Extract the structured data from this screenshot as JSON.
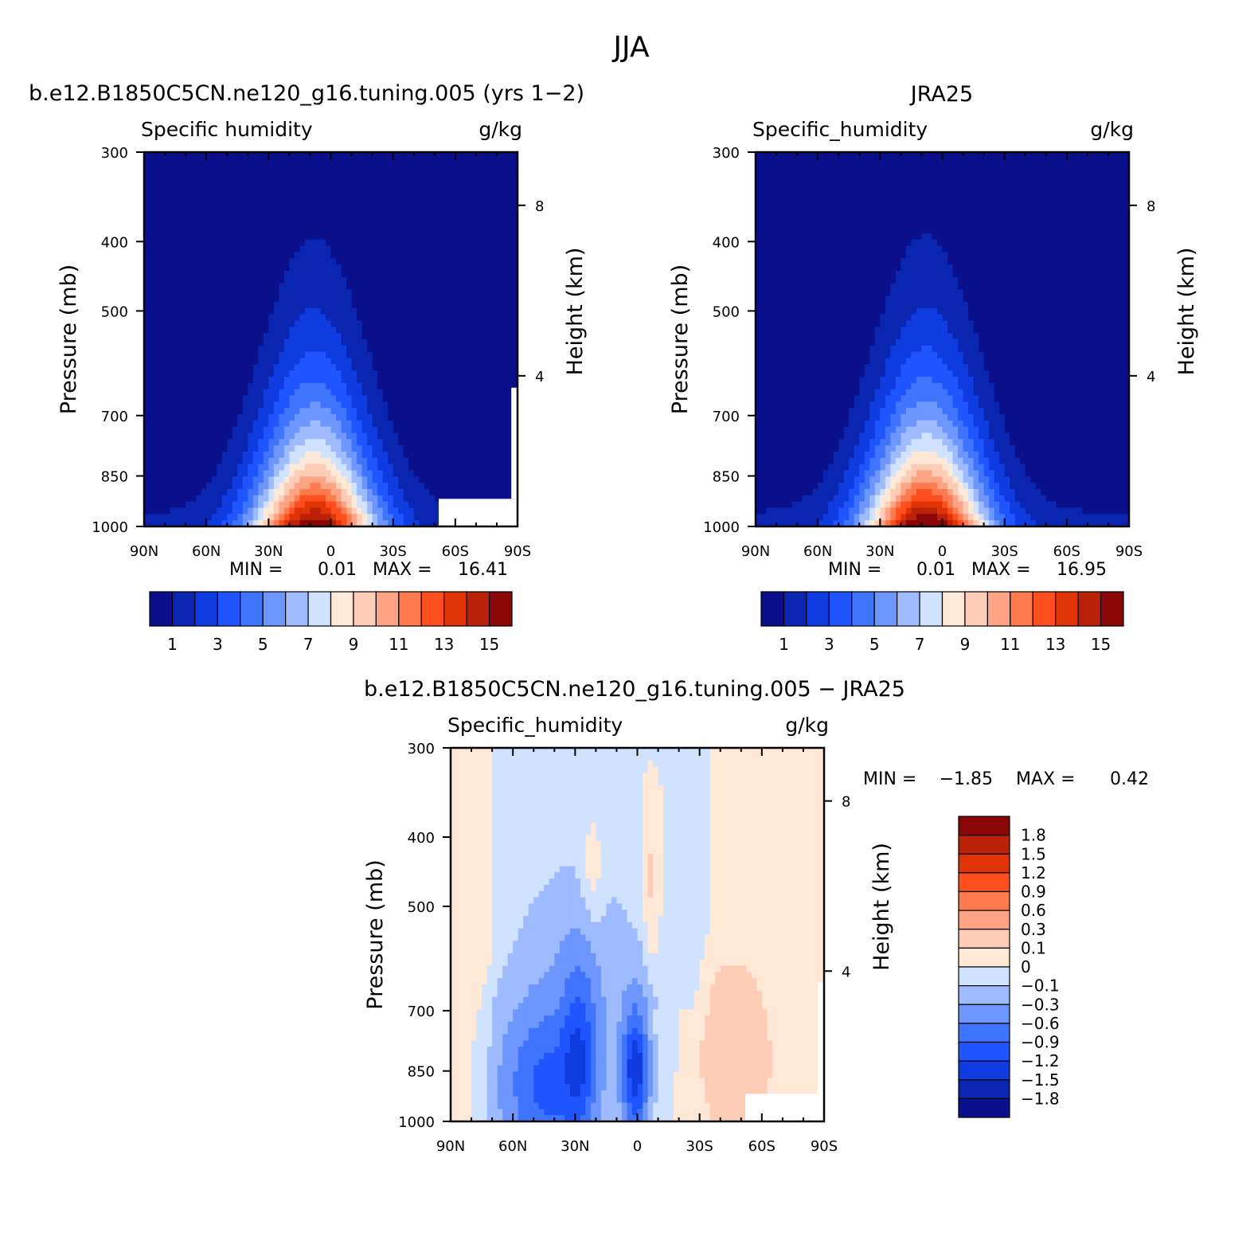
{
  "figure": {
    "title": "JJA"
  },
  "chart_data": [
    {
      "type": "heatmap",
      "title": "b.e12.B1850C5CN.ne120_g16.tuning.005 (yrs 1−2)",
      "variable": "Specific humidity",
      "units": "g/kg",
      "xlabel": "",
      "ylabel": "Pressure (mb)",
      "y2label": "Height (km)",
      "y_scale": "log",
      "xlim": [
        90,
        -90
      ],
      "ylim": [
        1000,
        300
      ],
      "x_ticks": [
        "90N",
        "60N",
        "30N",
        "0",
        "30S",
        "60S",
        "90S"
      ],
      "y_ticks": [
        "300",
        "400",
        "500",
        "700",
        "850",
        "1000"
      ],
      "y2_ticks": [
        "4",
        "8"
      ],
      "min_label": "MIN =",
      "min_value": "0.01",
      "max_label": "MAX =",
      "max_value": "16.41",
      "colorbar": {
        "orientation": "horizontal",
        "levels": [
          1,
          2,
          3,
          4,
          5,
          6,
          7,
          8,
          9,
          10,
          11,
          12,
          13,
          14,
          15
        ],
        "labels": [
          "1",
          "3",
          "5",
          "7",
          "9",
          "11",
          "13",
          "15"
        ],
        "colors": [
          "#0a0f8c",
          "#0a26b0",
          "#0f3ce0",
          "#1e55ff",
          "#3f74ff",
          "#6d97ff",
          "#9fbbff",
          "#cfe2ff",
          "#ffe8d6",
          "#ffcdb5",
          "#fea384",
          "#ff7a4e",
          "#ff4f1f",
          "#e03306",
          "#ba2208",
          "#8a0606"
        ]
      },
      "grid": false,
      "missing_region": "surface below ~920 mb, 50S–90S"
    },
    {
      "type": "heatmap",
      "title": "JRA25",
      "variable": "Specific_humidity",
      "units": "g/kg",
      "xlabel": "",
      "ylabel": "Pressure (mb)",
      "y2label": "Height (km)",
      "y_scale": "log",
      "xlim": [
        90,
        -90
      ],
      "ylim": [
        1000,
        300
      ],
      "x_ticks": [
        "90N",
        "60N",
        "30N",
        "0",
        "30S",
        "60S",
        "90S"
      ],
      "y_ticks": [
        "300",
        "400",
        "500",
        "700",
        "850",
        "1000"
      ],
      "y2_ticks": [
        "4",
        "8"
      ],
      "min_label": "MIN =",
      "min_value": "0.01",
      "max_label": "MAX =",
      "max_value": "16.95",
      "colorbar": {
        "orientation": "horizontal",
        "levels": [
          1,
          2,
          3,
          4,
          5,
          6,
          7,
          8,
          9,
          10,
          11,
          12,
          13,
          14,
          15
        ],
        "labels": [
          "1",
          "3",
          "5",
          "7",
          "9",
          "11",
          "13",
          "15"
        ],
        "colors": [
          "#0a0f8c",
          "#0a26b0",
          "#0f3ce0",
          "#1e55ff",
          "#3f74ff",
          "#6d97ff",
          "#9fbbff",
          "#cfe2ff",
          "#ffe8d6",
          "#ffcdb5",
          "#fea384",
          "#ff7a4e",
          "#ff4f1f",
          "#e03306",
          "#ba2208",
          "#8a0606"
        ]
      },
      "grid": false
    },
    {
      "type": "heatmap",
      "title": "b.e12.B1850C5CN.ne120_g16.tuning.005 − JRA25",
      "variable": "Specific_humidity",
      "units": "g/kg",
      "xlabel": "",
      "ylabel": "Pressure (mb)",
      "y2label": "Height (km)",
      "y_scale": "log",
      "xlim": [
        90,
        -90
      ],
      "ylim": [
        1000,
        300
      ],
      "x_ticks": [
        "90N",
        "60N",
        "30N",
        "0",
        "30S",
        "60S",
        "90S"
      ],
      "y_ticks": [
        "300",
        "400",
        "500",
        "700",
        "850",
        "1000"
      ],
      "y2_ticks": [
        "4",
        "8"
      ],
      "min_label": "MIN =",
      "min_value": "−1.85",
      "max_label": "MAX =",
      "max_value": "0.42",
      "colorbar": {
        "orientation": "vertical",
        "levels": [
          1.8,
          1.5,
          1.2,
          0.9,
          0.6,
          0.3,
          0.1,
          0,
          -0.1,
          -0.3,
          -0.6,
          -0.9,
          -1.2,
          -1.5,
          -1.8
        ],
        "labels": [
          "1.8",
          "1.5",
          "1.2",
          "0.9",
          "0.6",
          "0.3",
          "0.1",
          "0",
          "−0.1",
          "−0.3",
          "−0.6",
          "−0.9",
          "−1.2",
          "−1.5",
          "−1.8"
        ],
        "colors": [
          "#8a0606",
          "#ba2208",
          "#e03306",
          "#ff4f1f",
          "#ff7a4e",
          "#fea384",
          "#ffcdb5",
          "#ffe8d6",
          "#cfe2ff",
          "#9fbbff",
          "#6d97ff",
          "#3f74ff",
          "#1e55ff",
          "#0f3ce0",
          "#0a26b0",
          "#0a0f8c"
        ]
      },
      "grid": false,
      "missing_region": "surface below ~920 mb, 50S–90S"
    }
  ]
}
